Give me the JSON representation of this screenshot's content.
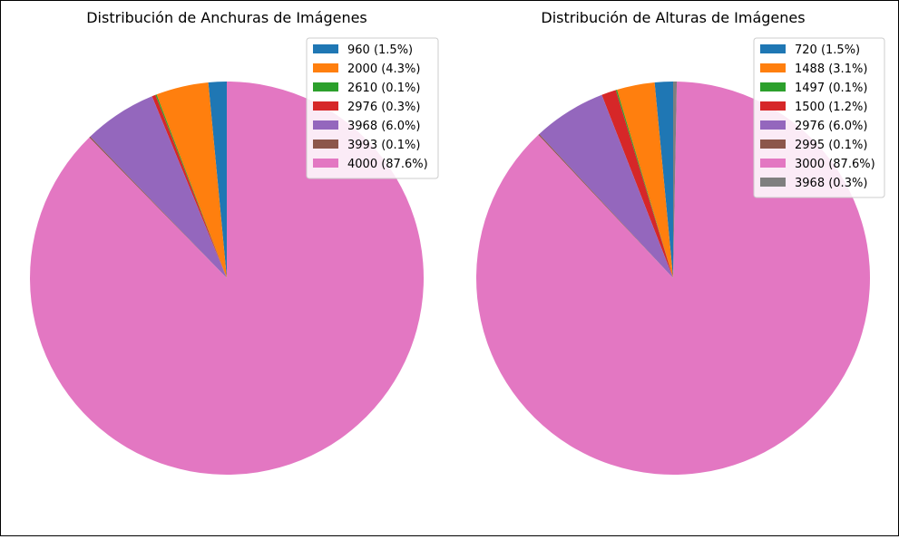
{
  "chart_data": [
    {
      "type": "pie",
      "title": "Distribución de Anchuras de Imágenes",
      "legend_position": "top-right",
      "start_angle": 90,
      "direction": "counterclockwise",
      "slices": [
        {
          "label": "960 (1.5%)",
          "value": 1.5,
          "color": "#1f77b4"
        },
        {
          "label": "2000 (4.3%)",
          "value": 4.3,
          "color": "#ff7f0e"
        },
        {
          "label": "2610 (0.1%)",
          "value": 0.1,
          "color": "#2ca02c"
        },
        {
          "label": "2976 (0.3%)",
          "value": 0.3,
          "color": "#d62728"
        },
        {
          "label": "3968 (6.0%)",
          "value": 6.0,
          "color": "#9467bd"
        },
        {
          "label": "3993 (0.1%)",
          "value": 0.1,
          "color": "#8c564b"
        },
        {
          "label": "4000 (87.6%)",
          "value": 87.6,
          "color": "#e377c2"
        }
      ]
    },
    {
      "type": "pie",
      "title": "Distribución de Alturas de Imágenes",
      "legend_position": "top-right",
      "start_angle": 90,
      "direction": "counterclockwise",
      "slices": [
        {
          "label": "720 (1.5%)",
          "value": 1.5,
          "color": "#1f77b4"
        },
        {
          "label": "1488 (3.1%)",
          "value": 3.1,
          "color": "#ff7f0e"
        },
        {
          "label": "1497 (0.1%)",
          "value": 0.1,
          "color": "#2ca02c"
        },
        {
          "label": "1500 (1.2%)",
          "value": 1.2,
          "color": "#d62728"
        },
        {
          "label": "2976 (6.0%)",
          "value": 6.0,
          "color": "#9467bd"
        },
        {
          "label": "2995 (0.1%)",
          "value": 0.1,
          "color": "#8c564b"
        },
        {
          "label": "3000 (87.6%)",
          "value": 87.6,
          "color": "#e377c2"
        },
        {
          "label": "3968 (0.3%)",
          "value": 0.3,
          "color": "#7f7f7f"
        }
      ]
    }
  ]
}
